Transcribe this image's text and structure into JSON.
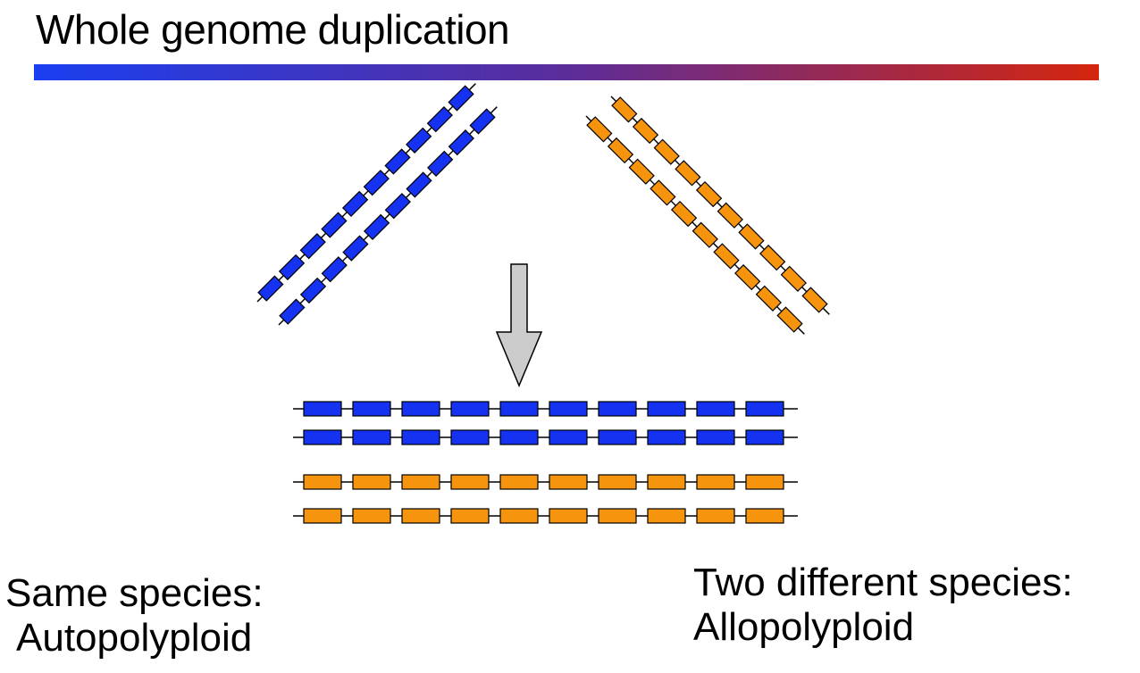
{
  "title": "Whole genome duplication",
  "colors": {
    "gradient_start": "#1a3ff0",
    "gradient_mid": "#5b2d9a",
    "gradient_end": "#d4260e",
    "species_a": "#1432f0",
    "species_b": "#f7940d",
    "arrow_fill": "#cccccc",
    "line": "#000000"
  },
  "diagram": {
    "left_chromosome_pair": {
      "species": "species_a",
      "segments": 10
    },
    "right_chromosome_pair": {
      "species": "species_b",
      "segments": 10
    },
    "merged_chromosomes": [
      {
        "species": "species_a",
        "segments": 10
      },
      {
        "species": "species_a",
        "segments": 10
      },
      {
        "species": "species_b",
        "segments": 10
      },
      {
        "species": "species_b",
        "segments": 10
      }
    ],
    "arrow_icon": "down-arrow-icon"
  },
  "captions": {
    "left": {
      "line1": "Same species:",
      "line2": "Autopolyploid"
    },
    "right": {
      "line1": "Two different species:",
      "line2": "Allopolyploid"
    }
  }
}
